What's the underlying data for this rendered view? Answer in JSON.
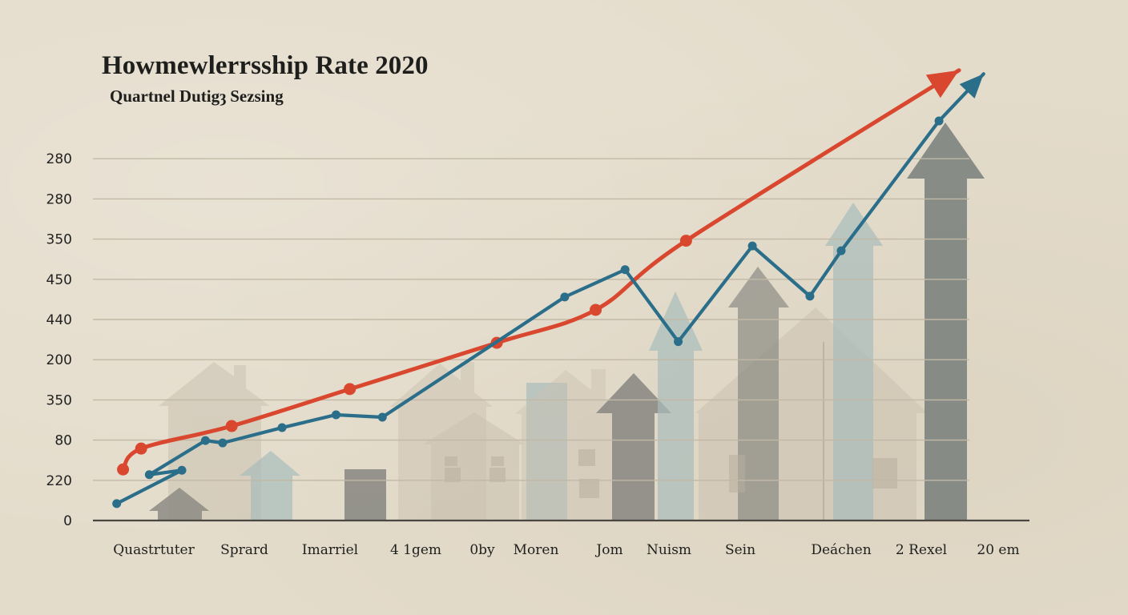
{
  "chart_data": {
    "type": "line",
    "title": "Howmewlerrsship Rate 2020",
    "subtitle": "Quartnel Dutigȝ Sezsing",
    "xlabel": "",
    "ylabel": "",
    "y_tick_labels": [
      "0",
      "220",
      "80",
      "350",
      "200",
      "440",
      "450",
      "350",
      "280",
      "280"
    ],
    "ylim": [
      0,
      9
    ],
    "grid": true,
    "legend": "none",
    "categories": [
      "Quastrtuter",
      "Sprard",
      "Imarriel",
      "4 1gem",
      "0by",
      "Moren",
      "Jom",
      "Nuism",
      "Sein",
      "Deáchen",
      "2 Rexel",
      "20 em"
    ],
    "series": [
      {
        "name": "red-trend",
        "color": "#d9472f",
        "style": "curve-with-arrow",
        "points": [
          {
            "x": -0.34,
            "y": 1.27
          },
          {
            "x": -0.14,
            "y": 1.79
          },
          {
            "x": 0.86,
            "y": 2.35
          },
          {
            "x": 2.23,
            "y": 3.27
          },
          {
            "x": 4.27,
            "y": 4.42
          },
          {
            "x": 5.81,
            "y": 5.24
          },
          {
            "x": 7.24,
            "y": 6.96
          }
        ],
        "arrow_tip": {
          "x": 10.49,
          "y": 11.2
        }
      },
      {
        "name": "blue-series",
        "color": "#2a6e8a",
        "style": "polyline-with-arrow",
        "points": [
          {
            "x": -0.41,
            "y": 0.42
          },
          {
            "x": 0.31,
            "y": 1.25
          },
          {
            "x": -0.05,
            "y": 1.14
          },
          {
            "x": 0.57,
            "y": 1.99
          },
          {
            "x": 0.76,
            "y": 1.93
          },
          {
            "x": 1.44,
            "y": 2.31
          },
          {
            "x": 2.07,
            "y": 2.63
          },
          {
            "x": 2.61,
            "y": 2.57
          },
          {
            "x": 5.39,
            "y": 5.56
          },
          {
            "x": 6.26,
            "y": 6.24
          },
          {
            "x": 7.13,
            "y": 4.45
          },
          {
            "x": 8.12,
            "y": 6.83
          },
          {
            "x": 8.69,
            "y": 5.58
          },
          {
            "x": 9.0,
            "y": 6.71
          },
          {
            "x": 10.23,
            "y": 9.94
          }
        ],
        "arrow_tip": {
          "x": 10.81,
          "y": 11.11
        }
      }
    ],
    "background_shapes": [
      {
        "kind": "house",
        "tone": "beige"
      },
      {
        "kind": "arrow",
        "tone": "gray"
      },
      {
        "kind": "arrow",
        "tone": "teal"
      },
      {
        "kind": "bar",
        "tone": "gray"
      },
      {
        "kind": "house",
        "tone": "beige"
      },
      {
        "kind": "house",
        "tone": "beige"
      },
      {
        "kind": "bar",
        "tone": "teal"
      },
      {
        "kind": "house",
        "tone": "beige"
      },
      {
        "kind": "arrow",
        "tone": "gray"
      },
      {
        "kind": "arrow",
        "tone": "teal"
      },
      {
        "kind": "house",
        "tone": "beige"
      },
      {
        "kind": "arrow",
        "tone": "gray"
      },
      {
        "kind": "arrow",
        "tone": "teal"
      },
      {
        "kind": "arrow",
        "tone": "dark-gray"
      }
    ],
    "colors": {
      "background": "#e4dccb",
      "grid": "#c2b8a6",
      "axis": "#4a4742",
      "red": "#d9472f",
      "blue": "#2a6e8a",
      "beige_shape": "#cbc1b1",
      "gray_shape": "#8c8b84",
      "teal_shape": "#a8bcbb",
      "dark_gray_shape": "#7d837e"
    }
  }
}
